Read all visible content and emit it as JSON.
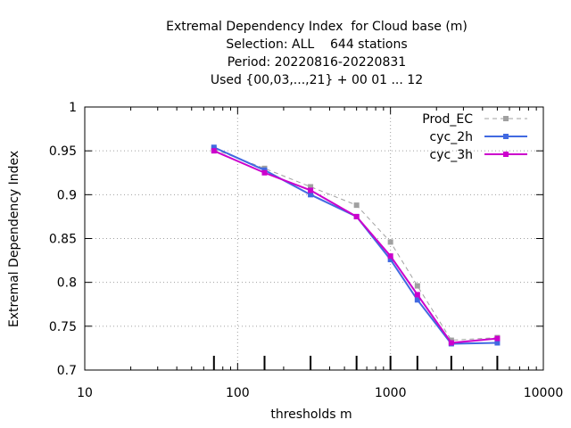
{
  "chart_data": {
    "type": "line",
    "title_lines": [
      "Extremal Dependency Index  for Cloud base (m)",
      "Selection: ALL    644 stations",
      "Period: 20220816-20220831",
      "Used {00,03,...,21} + 00 01 ... 12"
    ],
    "xlabel": "thresholds m",
    "ylabel": "Extremal Dependency Index",
    "x_scale": "log",
    "xlim": [
      10,
      10000
    ],
    "ylim": [
      0.7,
      1.0
    ],
    "x_ticks": [
      10,
      100,
      1000,
      10000
    ],
    "x_tick_labels": [
      "10",
      "100",
      "1000",
      "10000"
    ],
    "y_ticks": [
      0.7,
      0.75,
      0.8,
      0.85,
      0.9,
      0.95,
      1.0
    ],
    "y_tick_labels": [
      "0.7",
      "0.75",
      "0.8",
      "0.85",
      "0.9",
      "0.95",
      "1"
    ],
    "grid": true,
    "legend_position": "top-right",
    "threshold_markers": [
      70,
      150,
      300,
      600,
      1000,
      1500,
      2500,
      5000
    ],
    "x": [
      70,
      150,
      300,
      600,
      1000,
      1500,
      2500,
      5000
    ],
    "series": [
      {
        "name": "Prod_EC",
        "color": "#a0a0a0",
        "dashed": true,
        "values": [
          0.952,
          0.93,
          0.909,
          0.888,
          0.846,
          0.796,
          0.734,
          0.737
        ]
      },
      {
        "name": "cyc_2h",
        "color": "#4169e1",
        "dashed": false,
        "values": [
          0.954,
          0.928,
          0.9,
          0.875,
          0.826,
          0.78,
          0.73,
          0.731
        ]
      },
      {
        "name": "cyc_3h",
        "color": "#cc00cc",
        "dashed": false,
        "values": [
          0.95,
          0.925,
          0.905,
          0.875,
          0.83,
          0.786,
          0.731,
          0.736
        ]
      }
    ]
  }
}
